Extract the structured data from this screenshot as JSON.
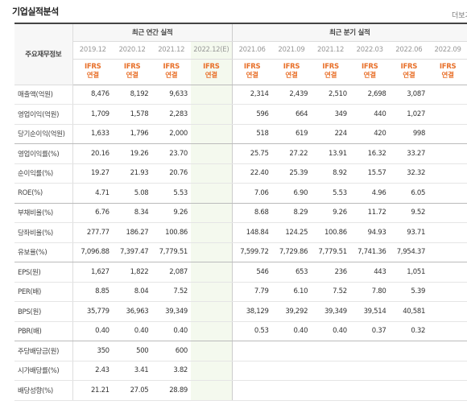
{
  "title": "기업실적분석",
  "more": "더보기",
  "header": {
    "corner": "주요재무정보",
    "annual_group": "최근 연간 실적",
    "quarter_group": "최근 분기 실적",
    "periods": [
      "2019.12",
      "2020.12",
      "2021.12",
      "2022.12(E)",
      "2021.06",
      "2021.09",
      "2021.12",
      "2022.03",
      "2022.06",
      "2022.09"
    ],
    "ifrs": "IFRS",
    "consolidated": "연결"
  },
  "rows": [
    {
      "label": "매출액(억원)",
      "values": [
        "8,476",
        "8,192",
        "9,633",
        "",
        "2,314",
        "2,439",
        "2,510",
        "2,698",
        "3,087",
        ""
      ]
    },
    {
      "label": "영업이익(억원)",
      "values": [
        "1,709",
        "1,578",
        "2,283",
        "",
        "596",
        "664",
        "349",
        "440",
        "1,027",
        ""
      ]
    },
    {
      "label": "당기순이익(억원)",
      "values": [
        "1,633",
        "1,796",
        "2,000",
        "",
        "518",
        "619",
        "224",
        "420",
        "998",
        ""
      ]
    },
    {
      "label": "영업이익률(%)",
      "values": [
        "20.16",
        "19.26",
        "23.70",
        "",
        "25.75",
        "27.22",
        "13.91",
        "16.32",
        "33.27",
        ""
      ]
    },
    {
      "label": "순이익률(%)",
      "values": [
        "19.27",
        "21.93",
        "20.76",
        "",
        "22.40",
        "25.39",
        "8.92",
        "15.57",
        "32.32",
        ""
      ]
    },
    {
      "label": "ROE(%)",
      "values": [
        "4.71",
        "5.08",
        "5.53",
        "",
        "7.06",
        "6.90",
        "5.53",
        "4.96",
        "6.05",
        ""
      ]
    },
    {
      "label": "부채비율(%)",
      "values": [
        "6.76",
        "8.34",
        "9.26",
        "",
        "8.68",
        "8.29",
        "9.26",
        "11.72",
        "9.52",
        ""
      ]
    },
    {
      "label": "당좌비율(%)",
      "values": [
        "277.77",
        "186.27",
        "100.86",
        "",
        "148.84",
        "124.25",
        "100.86",
        "94.93",
        "93.71",
        ""
      ]
    },
    {
      "label": "유보율(%)",
      "values": [
        "7,096.88",
        "7,397.47",
        "7,779.51",
        "",
        "7,599.72",
        "7,729.86",
        "7,779.51",
        "7,741.36",
        "7,954.37",
        ""
      ]
    },
    {
      "label": "EPS(원)",
      "values": [
        "1,627",
        "1,822",
        "2,087",
        "",
        "546",
        "653",
        "236",
        "443",
        "1,051",
        ""
      ]
    },
    {
      "label": "PER(배)",
      "values": [
        "8.85",
        "8.04",
        "7.52",
        "",
        "7.79",
        "6.10",
        "7.52",
        "7.80",
        "5.39",
        ""
      ]
    },
    {
      "label": "BPS(원)",
      "values": [
        "35,779",
        "36,963",
        "39,349",
        "",
        "38,129",
        "39,292",
        "39,349",
        "39,514",
        "40,581",
        ""
      ]
    },
    {
      "label": "PBR(배)",
      "values": [
        "0.40",
        "0.40",
        "0.40",
        "",
        "0.53",
        "0.40",
        "0.40",
        "0.37",
        "0.32",
        ""
      ]
    },
    {
      "label": "주당배당금(원)",
      "values": [
        "350",
        "500",
        "600",
        "",
        "",
        "",
        "",
        "",
        "",
        ""
      ]
    },
    {
      "label": "시가배당률(%)",
      "values": [
        "2.43",
        "3.41",
        "3.82",
        "",
        "",
        "",
        "",
        "",
        "",
        ""
      ]
    },
    {
      "label": "배당성향(%)",
      "values": [
        "21.21",
        "27.05",
        "28.89",
        "",
        "",
        "",
        "",
        "",
        "",
        ""
      ]
    }
  ]
}
